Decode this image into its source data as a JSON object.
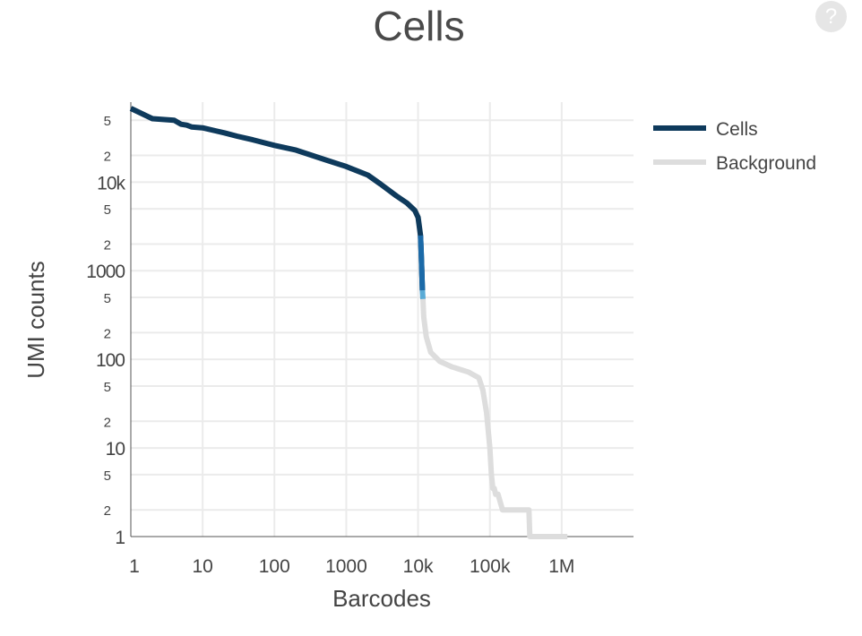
{
  "chart_data": {
    "type": "line",
    "title": "Cells",
    "xlabel": "Barcodes",
    "ylabel": "UMI counts",
    "x_scale": "log",
    "y_scale": "log",
    "xlim": [
      1,
      10000000
    ],
    "ylim": [
      1,
      80000
    ],
    "grid": true,
    "legend_position": "top-right",
    "x_ticks": [
      {
        "value": 1,
        "label": "1"
      },
      {
        "value": 10,
        "label": "10"
      },
      {
        "value": 100,
        "label": "100"
      },
      {
        "value": 1000,
        "label": "1000"
      },
      {
        "value": 10000,
        "label": "10k"
      },
      {
        "value": 100000,
        "label": "100k"
      },
      {
        "value": 1000000,
        "label": "1M"
      }
    ],
    "y_major_ticks": [
      {
        "value": 1,
        "label": "1"
      },
      {
        "value": 10,
        "label": "10"
      },
      {
        "value": 100,
        "label": "100"
      },
      {
        "value": 1000,
        "label": "1000"
      },
      {
        "value": 10000,
        "label": "10k"
      }
    ],
    "y_minor_ticks": [
      {
        "value": 2,
        "label": "2"
      },
      {
        "value": 5,
        "label": "5"
      },
      {
        "value": 20,
        "label": "2"
      },
      {
        "value": 50,
        "label": "5"
      },
      {
        "value": 200,
        "label": "2"
      },
      {
        "value": 500,
        "label": "5"
      },
      {
        "value": 2000,
        "label": "2"
      },
      {
        "value": 5000,
        "label": "5"
      },
      {
        "value": 20000,
        "label": "2"
      },
      {
        "value": 50000,
        "label": "5"
      }
    ],
    "series": [
      {
        "name": "Cells",
        "color": "#0e3a5c",
        "x": [
          1,
          2,
          4,
          5,
          6,
          7,
          10,
          15,
          20,
          30,
          50,
          100,
          200,
          500,
          1000,
          2000,
          3000,
          5000,
          7000,
          9000,
          10000,
          10800,
          11200,
          11500
        ],
        "y": [
          68000,
          52000,
          50000,
          45000,
          44000,
          42000,
          41000,
          38000,
          36000,
          33000,
          30000,
          26000,
          23000,
          18000,
          15000,
          12000,
          9500,
          7000,
          5800,
          4800,
          4000,
          2500,
          1200,
          600
        ]
      },
      {
        "name": "",
        "color": "#1b6aa8",
        "x": [
          10800,
          11000,
          11500
        ],
        "y": [
          2500,
          1800,
          600
        ]
      },
      {
        "name": "",
        "color": "#5aabd6",
        "x": [
          11500,
          11700
        ],
        "y": [
          600,
          480
        ]
      },
      {
        "name": "Background",
        "color": "#dddddd",
        "x": [
          11700,
          12000,
          13000,
          15000,
          20000,
          30000,
          50000,
          70000,
          80000,
          90000,
          100000,
          105000,
          108000,
          110000,
          115000,
          120000,
          130000,
          150000,
          200000,
          300000,
          350000,
          360000,
          1000000,
          1200000
        ],
        "y": [
          480,
          300,
          180,
          120,
          95,
          82,
          72,
          62,
          45,
          25,
          10,
          5,
          4,
          3.5,
          3.5,
          3,
          3,
          2,
          2,
          2,
          2,
          1,
          1,
          1
        ]
      }
    ],
    "legend": [
      {
        "label": "Cells",
        "color": "#0e3a5c"
      },
      {
        "label": "Background",
        "color": "#dddddd"
      }
    ]
  },
  "ui": {
    "help_icon": "?"
  }
}
